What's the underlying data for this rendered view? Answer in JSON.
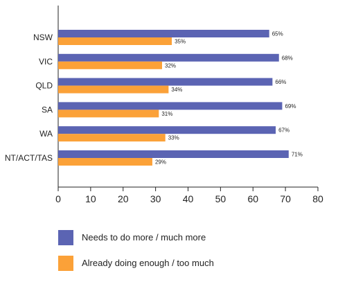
{
  "chart_data": {
    "type": "bar",
    "orientation": "horizontal",
    "categories": [
      "NSW",
      "VIC",
      "QLD",
      "SA",
      "WA",
      "NT/ACT/TAS"
    ],
    "series": [
      {
        "name": "Needs to do more / much more",
        "color": "#5b64b3",
        "values": [
          65,
          68,
          66,
          69,
          67,
          71
        ],
        "labels": [
          "65%",
          "68%",
          "66%",
          "69%",
          "67%",
          "71%"
        ]
      },
      {
        "name": "Already doing enough / too much",
        "color": "#fba138",
        "values": [
          35,
          32,
          34,
          31,
          33,
          29
        ],
        "labels": [
          "35%",
          "32%",
          "34%",
          "31%",
          "33%",
          "29%"
        ]
      }
    ],
    "xticks": [
      "0",
      "10",
      "20",
      "30",
      "40",
      "50",
      "60",
      "70",
      "80"
    ],
    "xlim": [
      0,
      80
    ],
    "grid": false,
    "legend_position": "bottom-left"
  }
}
